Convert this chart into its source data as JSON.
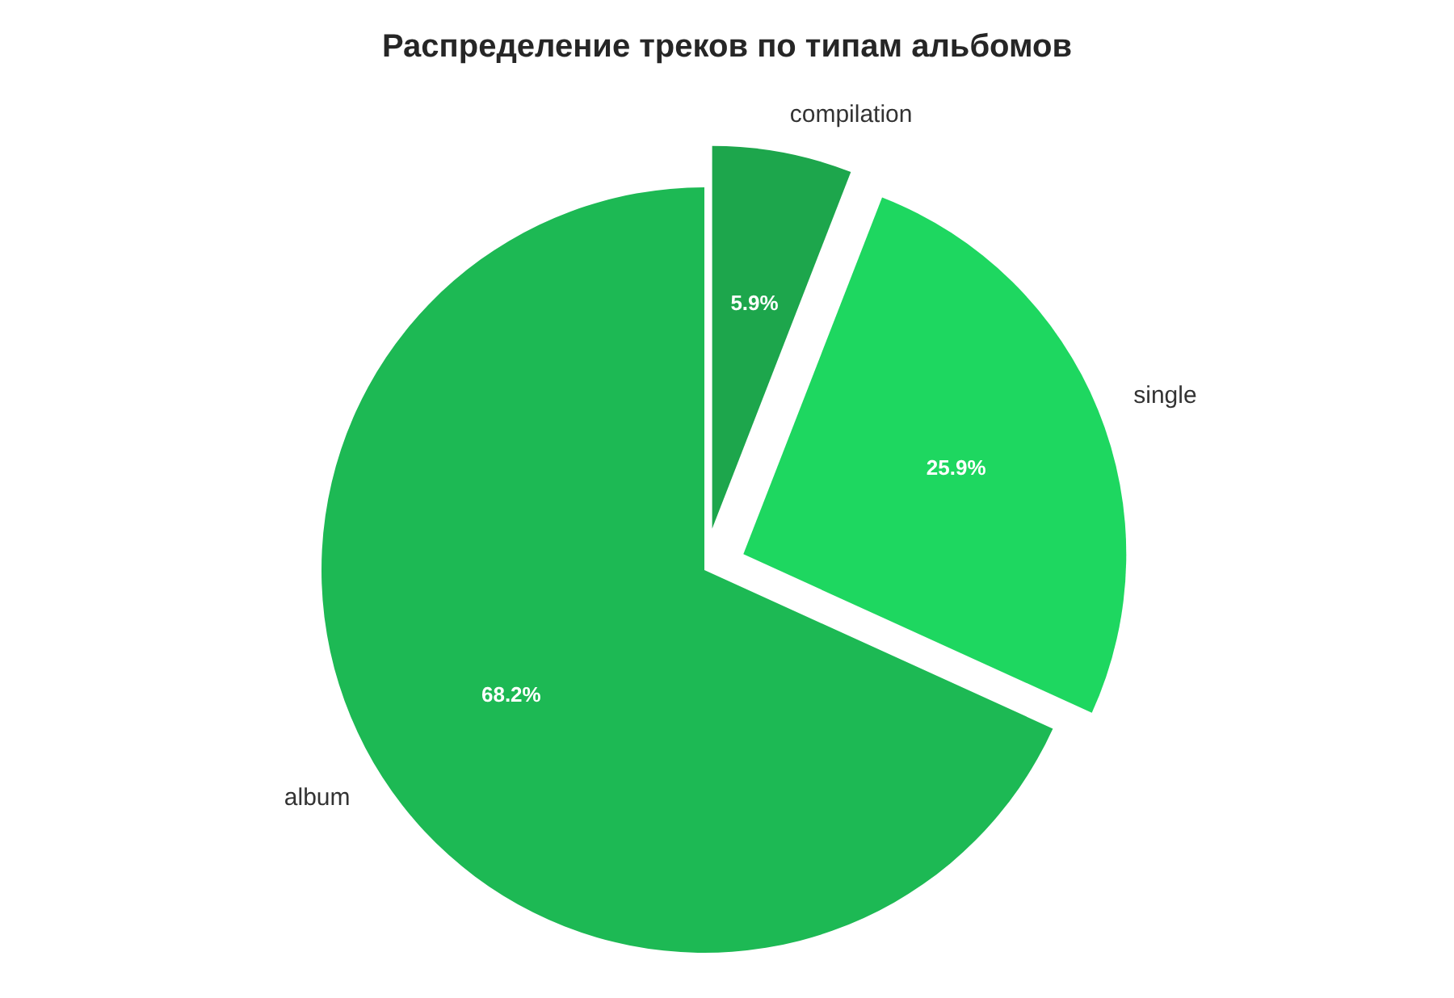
{
  "chart_data": {
    "type": "pie",
    "title": "Распределение треков по типам альбомов",
    "categories": [
      "album",
      "single",
      "compilation"
    ],
    "values": [
      68.2,
      25.9,
      5.9
    ],
    "colors": [
      "#1db954",
      "#1ed760",
      "#1da64c"
    ],
    "value_labels": [
      "68.2%",
      "25.9%",
      "5.9%"
    ],
    "legend": false
  }
}
